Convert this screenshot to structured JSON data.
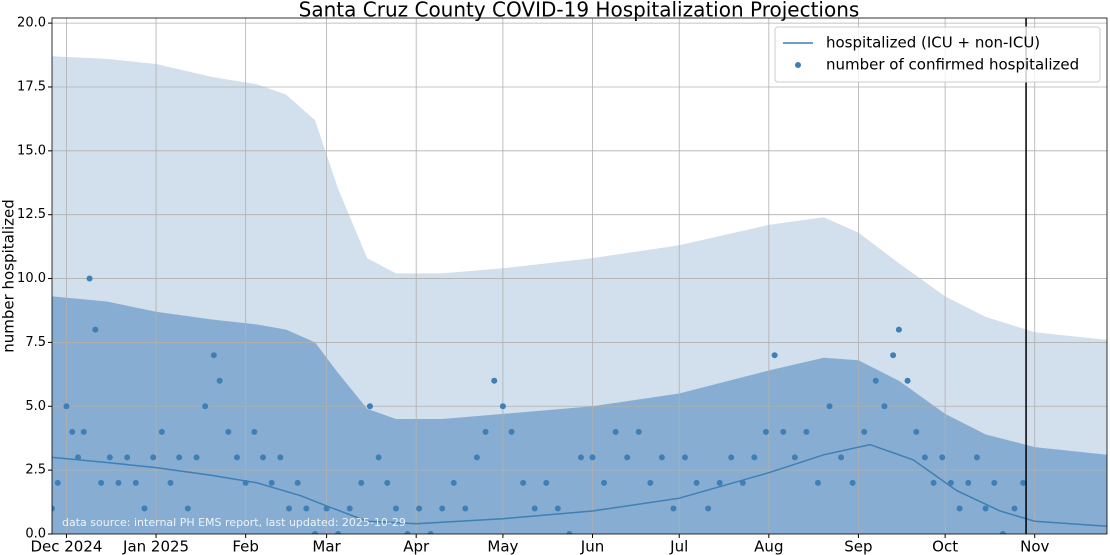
{
  "chart_data": {
    "type": "line",
    "title": "Santa Cruz County COVID-19 Hospitalization Projections",
    "y_label": "number hospitalized",
    "annotation": "data source: internal PH EMS report, last updated: 2025-10-29",
    "xlim": [
      "2024-11-26",
      "2025-11-26"
    ],
    "ylim": [
      0,
      20.2
    ],
    "xticks": [
      {
        "value": "2024-12-01",
        "label": "Dec 2024"
      },
      {
        "value": "2025-01-01",
        "label": "Jan 2025"
      },
      {
        "value": "2025-02-01",
        "label": "Feb"
      },
      {
        "value": "2025-03-01",
        "label": "Mar"
      },
      {
        "value": "2025-04-01",
        "label": "Apr"
      },
      {
        "value": "2025-05-01",
        "label": "May"
      },
      {
        "value": "2025-06-01",
        "label": "Jun"
      },
      {
        "value": "2025-07-01",
        "label": "Jul"
      },
      {
        "value": "2025-08-01",
        "label": "Aug"
      },
      {
        "value": "2025-09-01",
        "label": "Sep"
      },
      {
        "value": "2025-10-01",
        "label": "Oct"
      },
      {
        "value": "2025-11-01",
        "label": "Nov"
      }
    ],
    "yticks": [
      {
        "value": 0,
        "label": "0.0"
      },
      {
        "value": 2.5,
        "label": "2.5"
      },
      {
        "value": 5,
        "label": "5.0"
      },
      {
        "value": 7.5,
        "label": "7.5"
      },
      {
        "value": 10,
        "label": "10.0"
      },
      {
        "value": 12.5,
        "label": "12.5"
      },
      {
        "value": 15,
        "label": "15.0"
      },
      {
        "value": 17.5,
        "label": "17.5"
      },
      {
        "value": 20,
        "label": "20.0"
      }
    ],
    "grid": true,
    "legend": "upper right",
    "vline": "2025-10-29",
    "bands": [
      {
        "color": "#d2dfec",
        "x": [
          "2024-11-26",
          "2024-12-15",
          "2025-01-01",
          "2025-01-20",
          "2025-02-05",
          "2025-02-15",
          "2025-02-25",
          "2025-03-05",
          "2025-03-15",
          "2025-03-25",
          "2025-04-10",
          "2025-05-01",
          "2025-06-01",
          "2025-07-01",
          "2025-08-01",
          "2025-08-20",
          "2025-09-01",
          "2025-09-15",
          "2025-10-01",
          "2025-10-15",
          "2025-11-01",
          "2025-11-26"
        ],
        "values": [
          18.7,
          18.6,
          18.4,
          17.9,
          17.6,
          17.2,
          16.2,
          13.5,
          10.8,
          10.2,
          10.2,
          10.4,
          10.8,
          11.3,
          12.1,
          12.4,
          11.8,
          10.6,
          9.3,
          8.5,
          7.9,
          7.6
        ]
      },
      {
        "color": "#87aed2",
        "x": [
          "2024-11-26",
          "2024-12-15",
          "2025-01-01",
          "2025-01-20",
          "2025-02-05",
          "2025-02-15",
          "2025-02-25",
          "2025-03-05",
          "2025-03-15",
          "2025-03-25",
          "2025-04-10",
          "2025-05-01",
          "2025-06-01",
          "2025-07-01",
          "2025-08-01",
          "2025-08-20",
          "2025-09-01",
          "2025-09-15",
          "2025-10-01",
          "2025-10-15",
          "2025-11-01",
          "2025-11-26"
        ],
        "values": [
          9.3,
          9.1,
          8.7,
          8.4,
          8.2,
          8.0,
          7.5,
          6.3,
          4.9,
          4.5,
          4.5,
          4.7,
          5.0,
          5.5,
          6.4,
          6.9,
          6.8,
          6.0,
          4.7,
          3.9,
          3.4,
          3.1
        ]
      }
    ],
    "series": [
      {
        "name": "hospitalized (ICU + non-ICU)",
        "color": "#3f7fb5",
        "kind": "line",
        "x": [
          "2024-11-26",
          "2024-12-15",
          "2025-01-01",
          "2025-01-20",
          "2025-02-05",
          "2025-02-20",
          "2025-03-01",
          "2025-03-15",
          "2025-04-01",
          "2025-05-01",
          "2025-06-01",
          "2025-07-01",
          "2025-08-01",
          "2025-08-20",
          "2025-09-05",
          "2025-09-20",
          "2025-10-05",
          "2025-10-20",
          "2025-11-01",
          "2025-11-26"
        ],
        "values": [
          3.0,
          2.8,
          2.6,
          2.3,
          2.0,
          1.5,
          1.1,
          0.5,
          0.4,
          0.6,
          0.9,
          1.4,
          2.4,
          3.1,
          3.5,
          2.9,
          1.7,
          0.9,
          0.5,
          0.3
        ]
      },
      {
        "name": "number of confirmed hospitalized",
        "color": "#3f7fb5",
        "kind": "scatter",
        "x": [
          "2024-11-26",
          "2024-11-28",
          "2024-12-01",
          "2024-12-03",
          "2024-12-05",
          "2024-12-07",
          "2024-12-09",
          "2024-12-11",
          "2024-12-13",
          "2024-12-16",
          "2024-12-19",
          "2024-12-22",
          "2024-12-25",
          "2024-12-28",
          "2024-12-31",
          "2025-01-03",
          "2025-01-06",
          "2025-01-09",
          "2025-01-12",
          "2025-01-15",
          "2025-01-18",
          "2025-01-21",
          "2025-01-23",
          "2025-01-26",
          "2025-01-29",
          "2025-02-01",
          "2025-02-04",
          "2025-02-07",
          "2025-02-10",
          "2025-02-13",
          "2025-02-16",
          "2025-02-19",
          "2025-02-22",
          "2025-02-25",
          "2025-03-01",
          "2025-03-05",
          "2025-03-09",
          "2025-03-13",
          "2025-03-16",
          "2025-03-19",
          "2025-03-22",
          "2025-03-25",
          "2025-03-29",
          "2025-04-02",
          "2025-04-06",
          "2025-04-10",
          "2025-04-14",
          "2025-04-18",
          "2025-04-22",
          "2025-04-25",
          "2025-04-28",
          "2025-05-01",
          "2025-05-04",
          "2025-05-08",
          "2025-05-12",
          "2025-05-16",
          "2025-05-20",
          "2025-05-24",
          "2025-05-28",
          "2025-06-01",
          "2025-06-05",
          "2025-06-09",
          "2025-06-13",
          "2025-06-17",
          "2025-06-21",
          "2025-06-25",
          "2025-06-29",
          "2025-07-03",
          "2025-07-07",
          "2025-07-11",
          "2025-07-15",
          "2025-07-19",
          "2025-07-23",
          "2025-07-27",
          "2025-07-31",
          "2025-08-03",
          "2025-08-06",
          "2025-08-10",
          "2025-08-14",
          "2025-08-18",
          "2025-08-22",
          "2025-08-26",
          "2025-08-30",
          "2025-09-03",
          "2025-09-07",
          "2025-09-10",
          "2025-09-13",
          "2025-09-15",
          "2025-09-18",
          "2025-09-21",
          "2025-09-24",
          "2025-09-27",
          "2025-09-30",
          "2025-10-03",
          "2025-10-06",
          "2025-10-09",
          "2025-10-12",
          "2025-10-15",
          "2025-10-18",
          "2025-10-21",
          "2025-10-25",
          "2025-10-28"
        ],
        "values": [
          1,
          2,
          5,
          4,
          3,
          4,
          10,
          8,
          2,
          3,
          2,
          3,
          2,
          1,
          3,
          4,
          2,
          3,
          1,
          3,
          5,
          7,
          6,
          4,
          3,
          2,
          4,
          3,
          2,
          3,
          1,
          2,
          1,
          0,
          1,
          0,
          1,
          2,
          5,
          3,
          2,
          1,
          0,
          1,
          0,
          1,
          2,
          1,
          3,
          4,
          6,
          5,
          4,
          2,
          1,
          2,
          1,
          0,
          3,
          3,
          2,
          4,
          3,
          4,
          2,
          3,
          1,
          3,
          2,
          1,
          2,
          3,
          2,
          3,
          4,
          7,
          4,
          3,
          4,
          2,
          5,
          3,
          2,
          4,
          6,
          5,
          7,
          8,
          6,
          4,
          3,
          2,
          3,
          2,
          1,
          2,
          3,
          1,
          2,
          0,
          1,
          2
        ]
      }
    ]
  }
}
